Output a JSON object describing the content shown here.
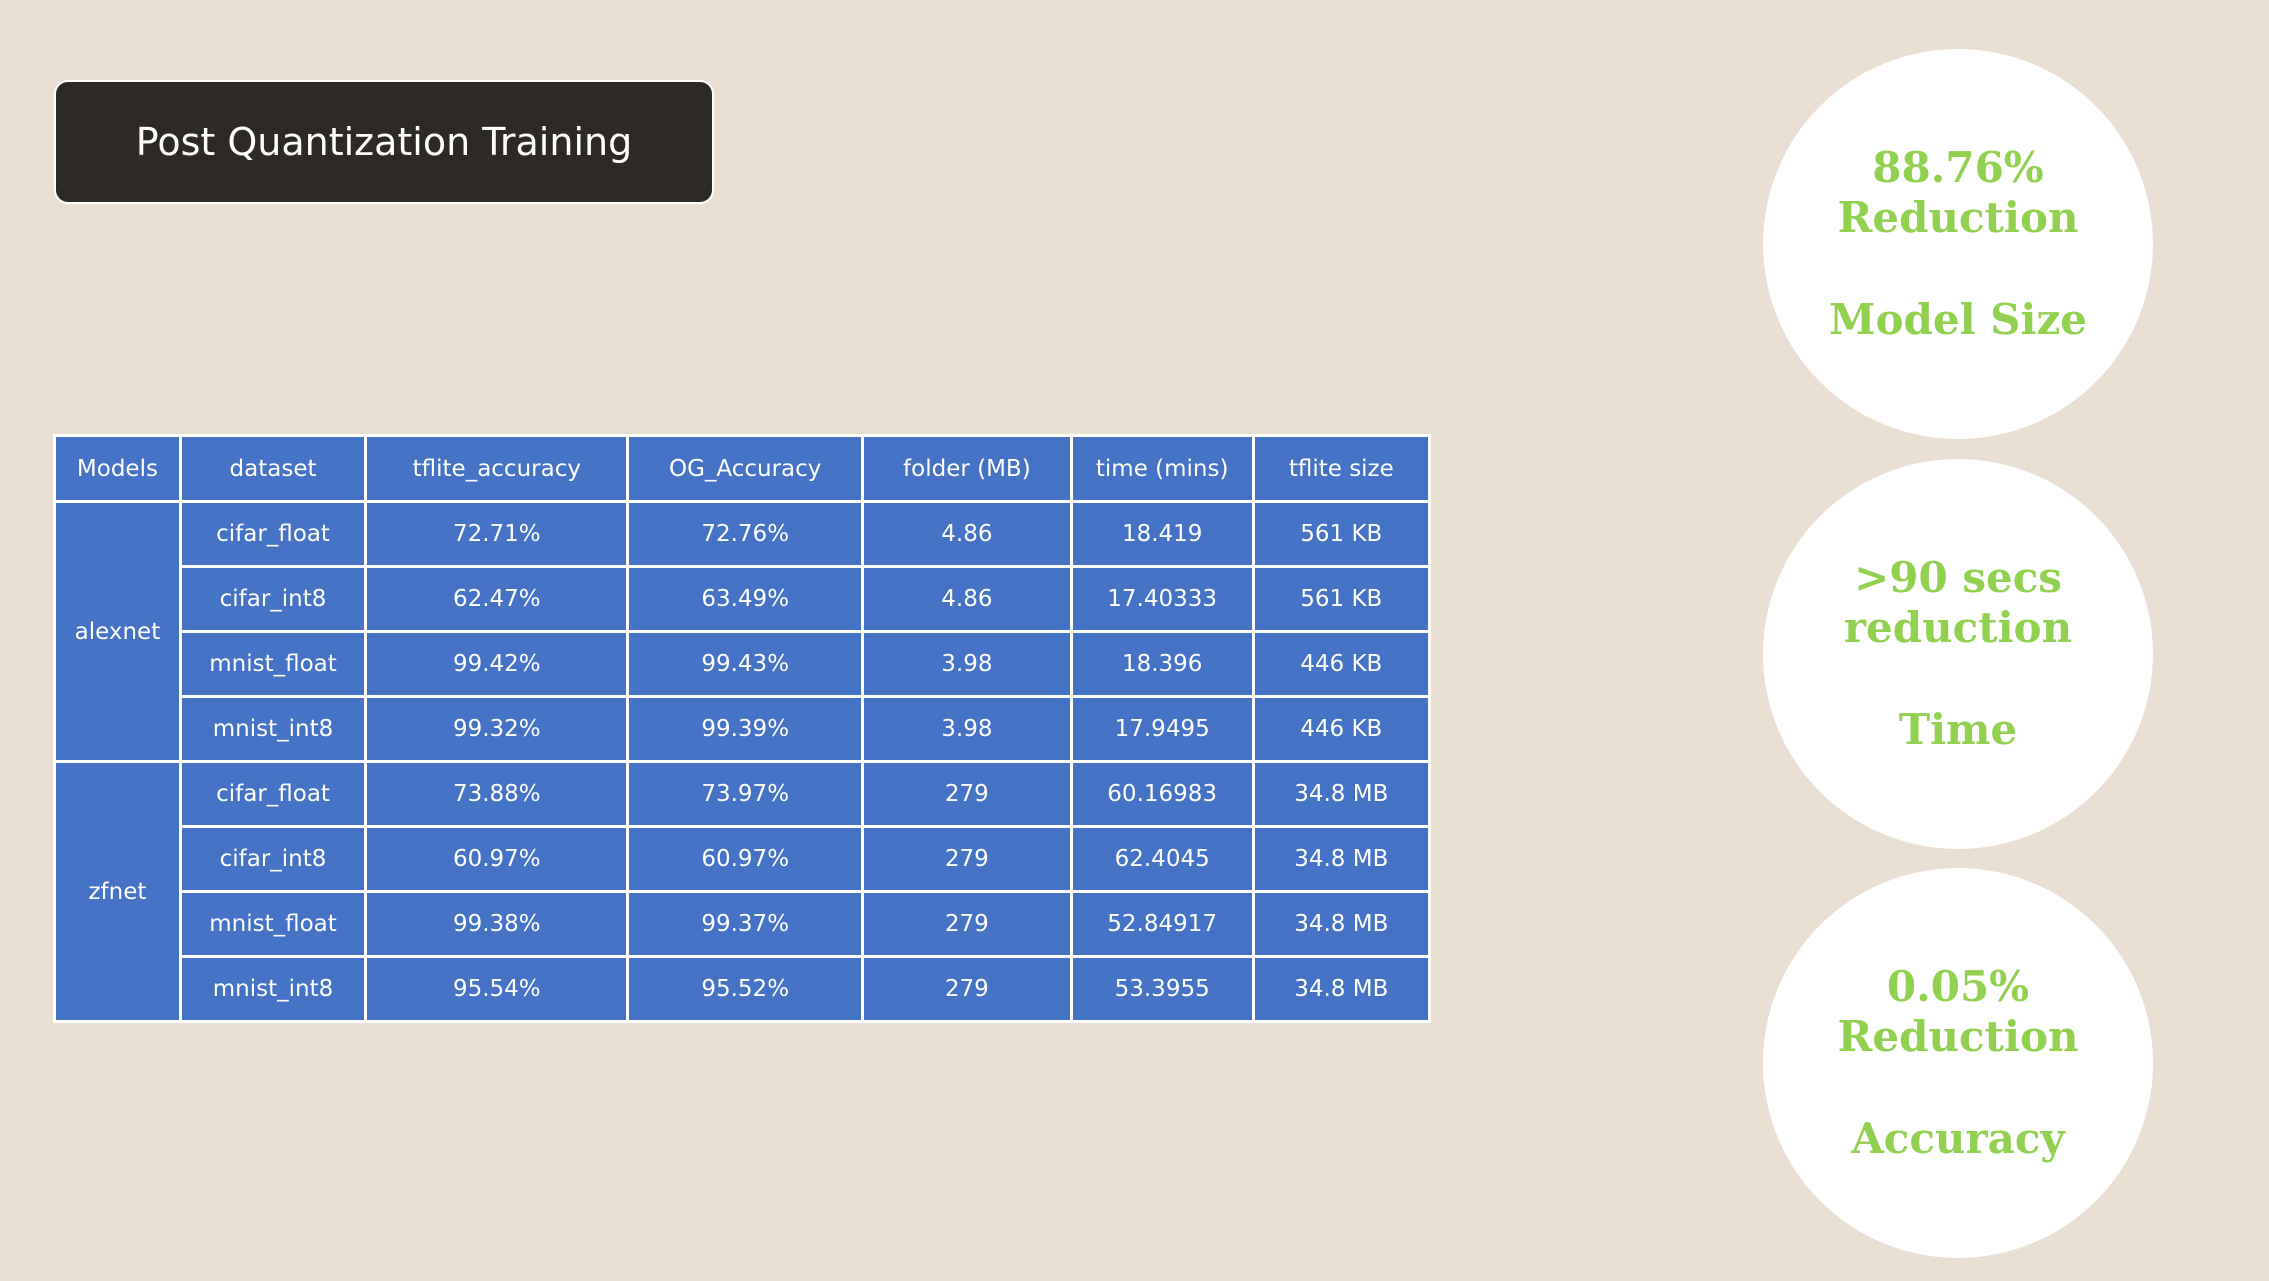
{
  "title": "Post Quantization Training",
  "table": {
    "headers": [
      "Models",
      "dataset",
      "tflite_accuracy",
      "OG_Accuracy",
      "folder (MB)",
      "time (mins)",
      "tflite size"
    ],
    "groups": [
      {
        "model": "alexnet",
        "rows": [
          [
            "cifar_float",
            "72.71%",
            "72.76%",
            "4.86",
            "18.419",
            "561 KB"
          ],
          [
            "cifar_int8",
            "62.47%",
            "63.49%",
            "4.86",
            "17.40333",
            "561 KB"
          ],
          [
            "mnist_float",
            "99.42%",
            "99.43%",
            "3.98",
            "18.396",
            "446 KB"
          ],
          [
            "mnist_int8",
            "99.32%",
            "99.39%",
            "3.98",
            "17.9495",
            "446 KB"
          ]
        ]
      },
      {
        "model": "zfnet",
        "rows": [
          [
            "cifar_float",
            "73.88%",
            "73.97%",
            "279",
            "60.16983",
            "34.8 MB"
          ],
          [
            "cifar_int8",
            "60.97%",
            "60.97%",
            "279",
            "62.4045",
            "34.8 MB"
          ],
          [
            "mnist_float",
            "99.38%",
            "99.37%",
            "279",
            "52.84917",
            "34.8 MB"
          ],
          [
            "mnist_int8",
            "95.54%",
            "95.52%",
            "279",
            "53.3955",
            "34.8 MB"
          ]
        ]
      }
    ]
  },
  "stats": [
    {
      "line1": "88.76%",
      "line2": "Reduction",
      "label": "Model Size"
    },
    {
      "line1": ">90 secs",
      "line2": "reduction",
      "label": "Time"
    },
    {
      "line1": "0.05%",
      "line2": "Reduction",
      "label": "Accuracy"
    }
  ],
  "colors": {
    "background": "#eadfd3",
    "title_box": "#2d2a26",
    "table_fill": "#4472c4",
    "stat_text": "#92d050"
  }
}
